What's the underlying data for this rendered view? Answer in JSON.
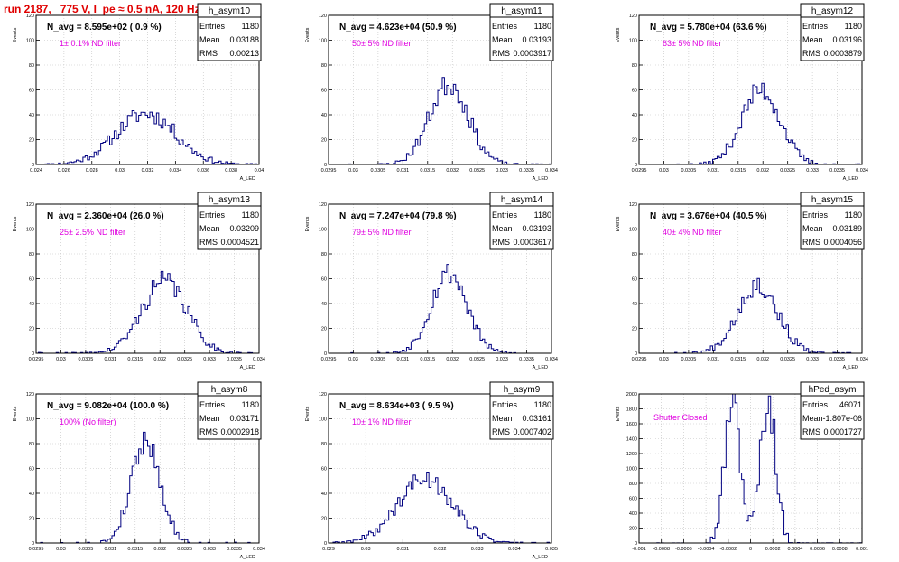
{
  "page_title": "run 2187,   775 V, I_pe ≈ 0.5 nA, 120 Hz",
  "colors": {
    "title": "#e00000",
    "hist": "#000080",
    "note": "#e000e0",
    "frame": "#000000",
    "grid": "#c0c0c0"
  },
  "chart_data": [
    {
      "type": "histogram",
      "name": "h_asym10",
      "title": "N_avg = 8.595e+02 ( 0.9 %)",
      "annotation": "1± 0.1% ND filter",
      "stats": {
        "entries_label": "Entries",
        "entries": "1180",
        "mean_label": "Mean",
        "mean": "0.03188",
        "rms_label": "RMS",
        "rms": "0.00213"
      },
      "ylabel": "Events",
      "xlabel": "A_LED",
      "xlim": [
        0.024,
        0.04
      ],
      "ylim": [
        0,
        120
      ],
      "xticks": [
        0.024,
        0.026,
        0.028,
        0.03,
        0.032,
        0.034,
        0.036,
        0.038,
        0.04
      ],
      "xtick_labels": [
        "0.024",
        "0.026",
        "0.028",
        "0.03",
        "0.032",
        "0.034",
        "0.036",
        "0.038",
        "0.04"
      ],
      "yticks": [
        0,
        20,
        40,
        60,
        80,
        100,
        120
      ],
      "ytick_labels": [
        "0",
        "20",
        "40",
        "60",
        "80",
        "100",
        "120"
      ],
      "mean": 0.03188,
      "rms": 0.00213,
      "peak": 41,
      "shape": "gauss",
      "seed": 11
    },
    {
      "type": "histogram",
      "name": "h_asym11",
      "title": "N_avg = 4.623e+04 (50.9 %)",
      "annotation": "50± 5% ND filter",
      "stats": {
        "entries_label": "Entries",
        "entries": "1180",
        "mean_label": "Mean",
        "mean": "0.03193",
        "rms_label": "RMS",
        "rms": "0.0003917"
      },
      "ylabel": "Events",
      "xlabel": "A_LED",
      "xlim": [
        0.0295,
        0.034
      ],
      "ylim": [
        0,
        120
      ],
      "xticks": [
        0.0295,
        0.03,
        0.0305,
        0.031,
        0.0315,
        0.032,
        0.0325,
        0.033,
        0.0335,
        0.034
      ],
      "xtick_labels": [
        "0.0295",
        "0.03",
        "0.0305",
        "0.031",
        "0.0315",
        "0.032",
        "0.0325",
        "0.033",
        "0.0335",
        "0.034"
      ],
      "yticks": [
        0,
        20,
        40,
        60,
        80,
        100,
        120
      ],
      "ytick_labels": [
        "0",
        "20",
        "40",
        "60",
        "80",
        "100",
        "120"
      ],
      "mean": 0.03193,
      "rms": 0.0003917,
      "peak": 65,
      "shape": "gauss",
      "seed": 23
    },
    {
      "type": "histogram",
      "name": "h_asym12",
      "title": "N_avg = 5.780e+04 (63.6 %)",
      "annotation": "63± 5% ND filter",
      "stats": {
        "entries_label": "Entries",
        "entries": "1180",
        "mean_label": "Mean",
        "mean": "0.03196",
        "rms_label": "RMS",
        "rms": "0.0003879"
      },
      "ylabel": "Events",
      "xlabel": "A_LED",
      "xlim": [
        0.0295,
        0.034
      ],
      "ylim": [
        0,
        120
      ],
      "xticks": [
        0.0295,
        0.03,
        0.0305,
        0.031,
        0.0315,
        0.032,
        0.0325,
        0.033,
        0.0335,
        0.034
      ],
      "xtick_labels": [
        "0.0295",
        "0.03",
        "0.0305",
        "0.031",
        "0.0315",
        "0.032",
        "0.0325",
        "0.033",
        "0.0335",
        "0.034"
      ],
      "yticks": [
        0,
        20,
        40,
        60,
        80,
        100,
        120
      ],
      "ytick_labels": [
        "0",
        "20",
        "40",
        "60",
        "80",
        "100",
        "120"
      ],
      "mean": 0.03196,
      "rms": 0.0003879,
      "peak": 60,
      "shape": "gauss",
      "seed": 37
    },
    {
      "type": "histogram",
      "name": "h_asym13",
      "title": "N_avg = 2.360e+04 (26.0 %)",
      "annotation": "25± 2.5% ND filter",
      "stats": {
        "entries_label": "Entries",
        "entries": "1180",
        "mean_label": "Mean",
        "mean": "0.03209",
        "rms_label": "RMS",
        "rms": "0.0004521"
      },
      "ylabel": "Events",
      "xlabel": "A_LED",
      "xlim": [
        0.0295,
        0.034
      ],
      "ylim": [
        0,
        120
      ],
      "xticks": [
        0.0295,
        0.03,
        0.0305,
        0.031,
        0.0315,
        0.032,
        0.0325,
        0.033,
        0.0335,
        0.034
      ],
      "xtick_labels": [
        "0.0295",
        "0.03",
        "0.0305",
        "0.031",
        "0.0315",
        "0.032",
        "0.0325",
        "0.033",
        "0.0335",
        "0.034"
      ],
      "yticks": [
        0,
        20,
        40,
        60,
        80,
        100,
        120
      ],
      "ytick_labels": [
        "0",
        "20",
        "40",
        "60",
        "80",
        "100",
        "120"
      ],
      "mean": 0.03209,
      "rms": 0.0004521,
      "peak": 58,
      "shape": "gauss",
      "seed": 41
    },
    {
      "type": "histogram",
      "name": "h_asym14",
      "title": "N_avg = 7.247e+04 (79.8 %)",
      "annotation": "79± 5% ND filter",
      "stats": {
        "entries_label": "Entries",
        "entries": "1180",
        "mean_label": "Mean",
        "mean": "0.03193",
        "rms_label": "RMS",
        "rms": "0.0003617"
      },
      "ylabel": "Events",
      "xlabel": "A_LED",
      "xlim": [
        0.0295,
        0.034
      ],
      "ylim": [
        0,
        120
      ],
      "xticks": [
        0.0295,
        0.03,
        0.0305,
        0.031,
        0.0315,
        0.032,
        0.0325,
        0.033,
        0.0335,
        0.034
      ],
      "xtick_labels": [
        "0.0295",
        "0.03",
        "0.0305",
        "0.031",
        "0.0315",
        "0.032",
        "0.0325",
        "0.033",
        "0.0335",
        "0.034"
      ],
      "yticks": [
        0,
        20,
        40,
        60,
        80,
        100,
        120
      ],
      "ytick_labels": [
        "0",
        "20",
        "40",
        "60",
        "80",
        "100",
        "120"
      ],
      "mean": 0.03193,
      "rms": 0.0003617,
      "peak": 65,
      "shape": "gauss",
      "seed": 53
    },
    {
      "type": "histogram",
      "name": "h_asym15",
      "title": "N_avg = 3.676e+04 (40.5 %)",
      "annotation": "40± 4% ND filter",
      "stats": {
        "entries_label": "Entries",
        "entries": "1180",
        "mean_label": "Mean",
        "mean": "0.03189",
        "rms_label": "RMS",
        "rms": "0.0004056"
      },
      "ylabel": "Events",
      "xlabel": "A_LED",
      "xlim": [
        0.0295,
        0.034
      ],
      "ylim": [
        0,
        120
      ],
      "xticks": [
        0.0295,
        0.03,
        0.0305,
        0.031,
        0.0315,
        0.032,
        0.0325,
        0.033,
        0.0335,
        0.034
      ],
      "xtick_labels": [
        "0.0295",
        "0.03",
        "0.0305",
        "0.031",
        "0.0315",
        "0.032",
        "0.0325",
        "0.033",
        "0.0335",
        "0.034"
      ],
      "yticks": [
        0,
        20,
        40,
        60,
        80,
        100,
        120
      ],
      "ytick_labels": [
        "0",
        "20",
        "40",
        "60",
        "80",
        "100",
        "120"
      ],
      "mean": 0.03189,
      "rms": 0.0004056,
      "peak": 55,
      "shape": "gauss",
      "seed": 67
    },
    {
      "type": "histogram",
      "name": "h_asym8",
      "title": "N_avg = 9.082e+04 (100.0 %)",
      "annotation": "100% (No filter)",
      "stats": {
        "entries_label": "Entries",
        "entries": "1180",
        "mean_label": "Mean",
        "mean": "0.03171",
        "rms_label": "RMS",
        "rms": "0.0002918"
      },
      "ylabel": "Events",
      "xlabel": "A_LED",
      "xlim": [
        0.0295,
        0.034
      ],
      "ylim": [
        0,
        120
      ],
      "xticks": [
        0.0295,
        0.03,
        0.0305,
        0.031,
        0.0315,
        0.032,
        0.0325,
        0.033,
        0.0335,
        0.034
      ],
      "xtick_labels": [
        "0.0295",
        "0.03",
        "0.0305",
        "0.031",
        "0.0315",
        "0.032",
        "0.0325",
        "0.033",
        "0.0335",
        "0.034"
      ],
      "yticks": [
        0,
        20,
        40,
        60,
        80,
        100,
        120
      ],
      "ytick_labels": [
        "0",
        "20",
        "40",
        "60",
        "80",
        "100",
        "120"
      ],
      "mean": 0.03171,
      "rms": 0.0002918,
      "peak": 83,
      "shape": "gauss",
      "seed": 79
    },
    {
      "type": "histogram",
      "name": "h_asym9",
      "title": "N_avg = 8.634e+03 ( 9.5 %)",
      "annotation": "10± 1% ND filter",
      "stats": {
        "entries_label": "Entries",
        "entries": "1180",
        "mean_label": "Mean",
        "mean": "0.03161",
        "rms_label": "RMS",
        "rms": "0.0007402"
      },
      "ylabel": "Events",
      "xlabel": "A_LED",
      "xlim": [
        0.029,
        0.035
      ],
      "ylim": [
        0,
        120
      ],
      "xticks": [
        0.029,
        0.03,
        0.031,
        0.032,
        0.033,
        0.034,
        0.035
      ],
      "xtick_labels": [
        "0.029",
        "0.03",
        "0.031",
        "0.032",
        "0.033",
        "0.034",
        "0.035"
      ],
      "yticks": [
        0,
        20,
        40,
        60,
        80,
        100,
        120
      ],
      "ytick_labels": [
        "0",
        "20",
        "40",
        "60",
        "80",
        "100",
        "120"
      ],
      "mean": 0.03161,
      "rms": 0.0007402,
      "peak": 52,
      "shape": "gauss",
      "seed": 89
    },
    {
      "type": "histogram",
      "name": "hPed_asym",
      "title": "",
      "annotation": "Shutter Closed",
      "stats": {
        "entries_label": "Entries",
        "entries": "46071",
        "mean_label": "Mean",
        "mean": "-1.807e-06",
        "rms_label": "RMS",
        "rms": "0.0001727"
      },
      "ylabel": "Events",
      "xlabel": "",
      "xlim": [
        -0.001,
        0.001
      ],
      "ylim": [
        0,
        2000
      ],
      "xticks": [
        -0.001,
        -0.0008,
        -0.0006,
        -0.0004,
        -0.0002,
        0,
        0.0002,
        0.0004,
        0.0006,
        0.0008,
        0.001
      ],
      "xtick_labels": [
        "-0.001",
        "-0.0008",
        "-0.0006",
        "-0.0004",
        "-0.0002",
        "0",
        "0.0002",
        "0.0004",
        "0.0006",
        "0.0008",
        "0.001"
      ],
      "yticks": [
        0,
        200,
        400,
        600,
        800,
        1000,
        1200,
        1400,
        1600,
        1800,
        2000
      ],
      "ytick_labels": [
        "0",
        "200",
        "400",
        "600",
        "800",
        "1000",
        "1200",
        "1400",
        "1600",
        "1800",
        "2000"
      ],
      "mean": -1.8e-06,
      "rms": 0.0001727,
      "peak": 1900,
      "shape": "double",
      "peak_offset": 0.00016,
      "peak_sigma": 7e-05,
      "seed": 97
    }
  ]
}
